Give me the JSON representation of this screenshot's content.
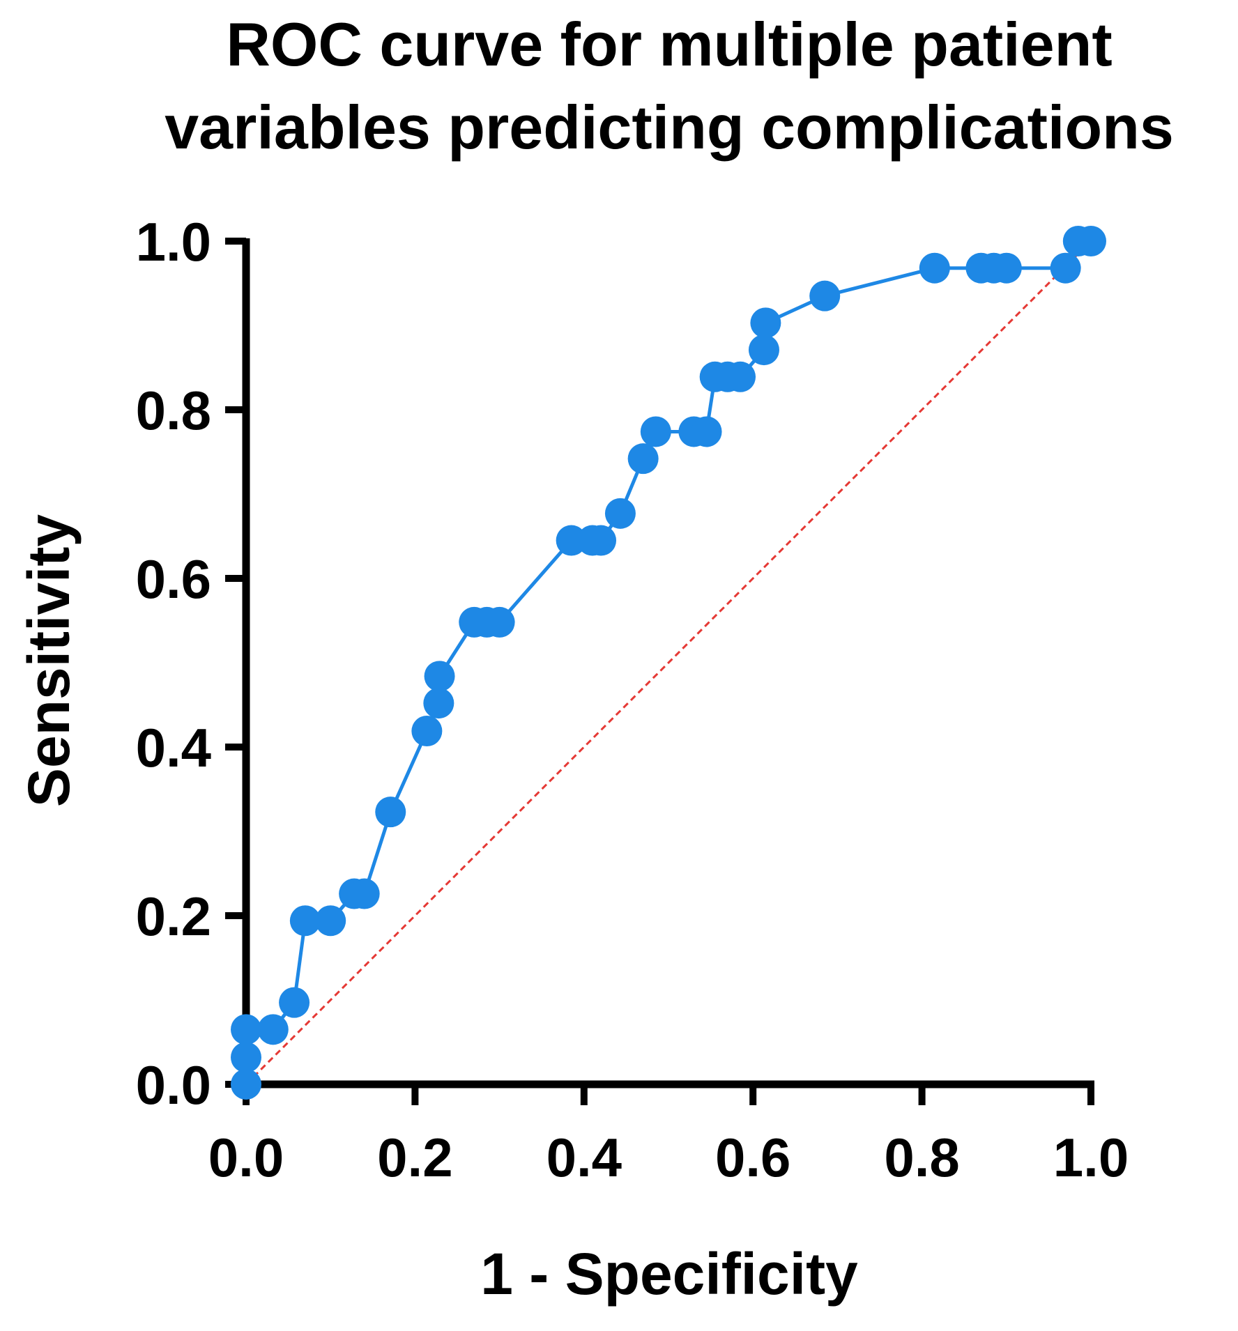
{
  "chart_data": {
    "type": "line",
    "title": [
      "ROC curve for multiple patient",
      "variables predicting complications"
    ],
    "xlabel": "1 - Specificity",
    "ylabel": "Sensitivity",
    "xlim": [
      0,
      1
    ],
    "ylim": [
      0,
      1
    ],
    "x_ticks": [
      "0.0",
      "0.2",
      "0.4",
      "0.6",
      "0.8",
      "1.0"
    ],
    "y_ticks": [
      "0.0",
      "0.2",
      "0.4",
      "0.6",
      "0.8",
      "1.0"
    ],
    "grid": false,
    "series": [
      {
        "name": "ROC curve",
        "color": "#1E88E5",
        "x": [
          0.0,
          0.0,
          0.0,
          0.032,
          0.057,
          0.07,
          0.1,
          0.128,
          0.14,
          0.171,
          0.214,
          0.228,
          0.229,
          0.27,
          0.285,
          0.3,
          0.385,
          0.41,
          0.42,
          0.443,
          0.47,
          0.485,
          0.53,
          0.545,
          0.555,
          0.57,
          0.585,
          0.613,
          0.615,
          0.685,
          0.815,
          0.87,
          0.885,
          0.9,
          0.97,
          0.985,
          1.0
        ],
        "y": [
          0.0,
          0.032,
          0.065,
          0.065,
          0.097,
          0.194,
          0.194,
          0.226,
          0.226,
          0.323,
          0.419,
          0.452,
          0.484,
          0.548,
          0.548,
          0.548,
          0.645,
          0.645,
          0.645,
          0.677,
          0.742,
          0.774,
          0.774,
          0.774,
          0.839,
          0.839,
          0.839,
          0.871,
          0.903,
          0.935,
          0.968,
          0.968,
          0.968,
          0.968,
          0.968,
          1.0,
          1.0
        ]
      },
      {
        "name": "Reference line",
        "color": "#E53935",
        "style": "dashed",
        "x": [
          0,
          1
        ],
        "y": [
          0,
          1
        ]
      }
    ]
  }
}
